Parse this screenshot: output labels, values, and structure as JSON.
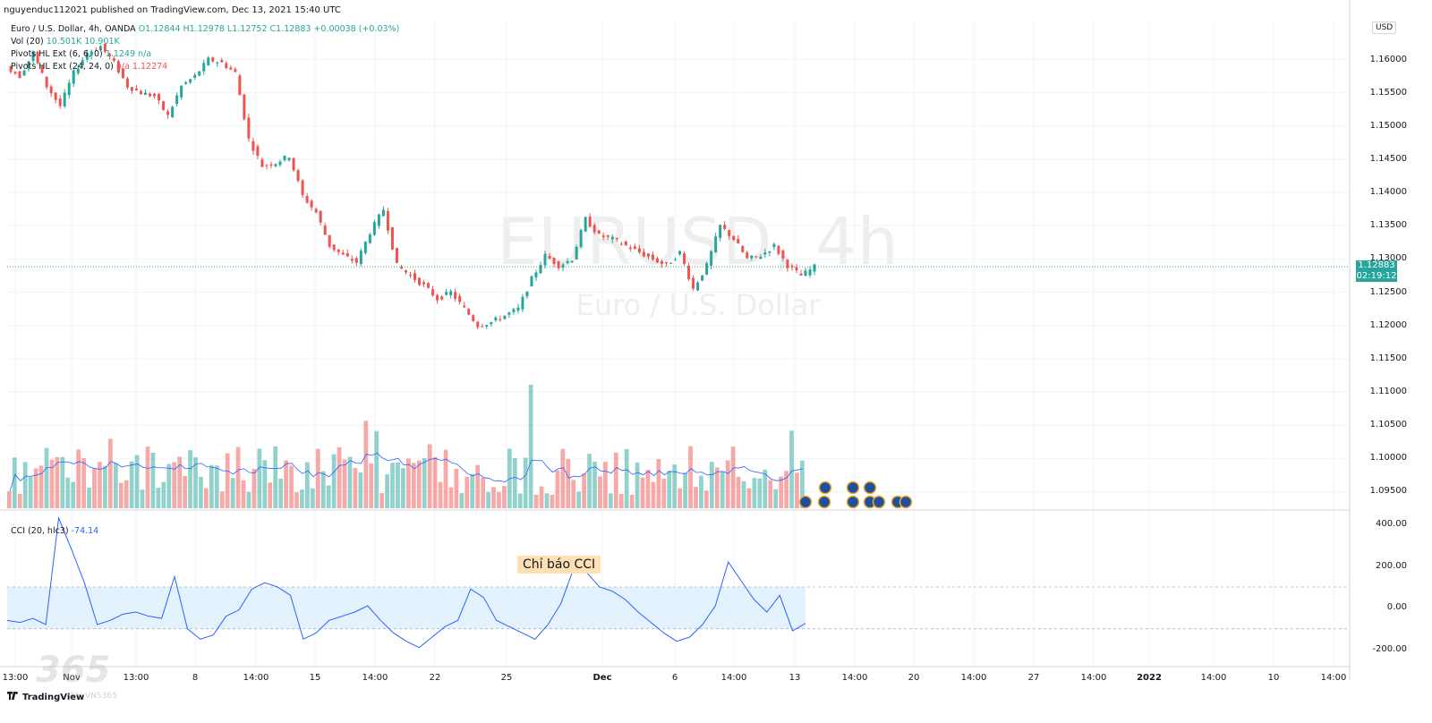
{
  "publisher": "nguyenduc112021 published on TradingView.com, Dec 13, 2021 15:40 UTC",
  "legend": {
    "symbol": "Euro / U.S. Dollar, 4h, OANDA",
    "ohlc": "O1.12844  H1.12978  L1.12752  C1.12883  +0.00038 (+0.03%)",
    "vol_label": "Vol (20)",
    "vol_values": "10.501K  10.901K",
    "pivots1_label": "Pivots HL Ext (6, 6, 0)",
    "pivots1_values": "1.1249  n/a",
    "pivots2_label": "Pivots HL Ext (24, 24, 0)",
    "pivots2_values": "n/a  1.12274"
  },
  "watermark": {
    "title": "EURUSD, 4h",
    "subtitle": "Euro / U.S. Dollar"
  },
  "currency": "USD",
  "last_price": {
    "value": "1.12883",
    "countdown": "02:19:12"
  },
  "cci_legend": {
    "label": "CCI (20, hlc3)",
    "value": "-74.14"
  },
  "annotation": "Chỉ báo CCI",
  "colors": {
    "up": "#26a69a",
    "down": "#ef5350",
    "cci": "#2962ff",
    "band": "#e3f2fd"
  },
  "branding": {
    "tradingview": "TradingView",
    "watermark_logo": "365",
    "watermark_sub": "INH VNS365"
  },
  "chart_data": [
    {
      "type": "candlestick",
      "title": "EURUSD, 4h",
      "ylim": [
        1.0925,
        1.166
      ],
      "y_ticks": [
        "1.16000",
        "1.15500",
        "1.15000",
        "1.14500",
        "1.14000",
        "1.13500",
        "1.13000",
        "1.12500",
        "1.12000",
        "1.11500",
        "1.11000",
        "1.10500",
        "1.10000",
        "1.09500"
      ],
      "x_ticks": [
        "13:00",
        "Nov",
        "13:00",
        "8",
        "14:00",
        "15",
        "14:00",
        "22",
        "25",
        "Dec",
        "6",
        "14:00",
        "13",
        "14:00",
        "20",
        "14:00",
        "27",
        "14:00",
        "2022",
        "14:00",
        "10",
        "14:00"
      ],
      "close_path": [
        1.1575,
        1.161,
        1.156,
        1.153,
        1.158,
        1.161,
        1.162,
        1.1595,
        1.156,
        1.155,
        1.1545,
        1.1515,
        1.156,
        1.1575,
        1.16,
        1.1595,
        1.158,
        1.148,
        1.144,
        1.1445,
        1.1455,
        1.1395,
        1.137,
        1.132,
        1.1305,
        1.1295,
        1.134,
        1.1375,
        1.129,
        1.1275,
        1.126,
        1.124,
        1.125,
        1.1225,
        1.12,
        1.1205,
        1.1215,
        1.1225,
        1.127,
        1.1305,
        1.129,
        1.13,
        1.136,
        1.1335,
        1.133,
        1.132,
        1.131,
        1.13,
        1.129,
        1.131,
        1.1255,
        1.129,
        1.135,
        1.133,
        1.13,
        1.1305,
        1.132,
        1.129,
        1.1275,
        1.1288
      ],
      "last": 1.12883
    },
    {
      "type": "bar",
      "title": "Vol (20)",
      "values": [
        10.501,
        10.901
      ],
      "note": "volume bars colored by candle direction with 20-period MA line"
    },
    {
      "type": "line",
      "title": "CCI (20, hlc3)",
      "ylim": [
        -260,
        460
      ],
      "y_ticks": [
        "400.00",
        "200.00",
        "0.00",
        "-200.00"
      ],
      "band": [
        -100,
        100
      ],
      "values": [
        -60,
        -70,
        -50,
        -80,
        430,
        280,
        120,
        -80,
        -60,
        -30,
        -20,
        -40,
        -50,
        150,
        -100,
        -150,
        -130,
        -40,
        -10,
        90,
        120,
        100,
        60,
        -150,
        -120,
        -60,
        -40,
        -20,
        10,
        -60,
        -120,
        -160,
        -190,
        -140,
        -90,
        -60,
        90,
        50,
        -60,
        -90,
        -120,
        -150,
        -80,
        20,
        190,
        170,
        100,
        80,
        40,
        -20,
        -70,
        -120,
        -160,
        -140,
        -80,
        10,
        220,
        130,
        40,
        -20,
        60,
        -110,
        -74
      ]
    }
  ]
}
